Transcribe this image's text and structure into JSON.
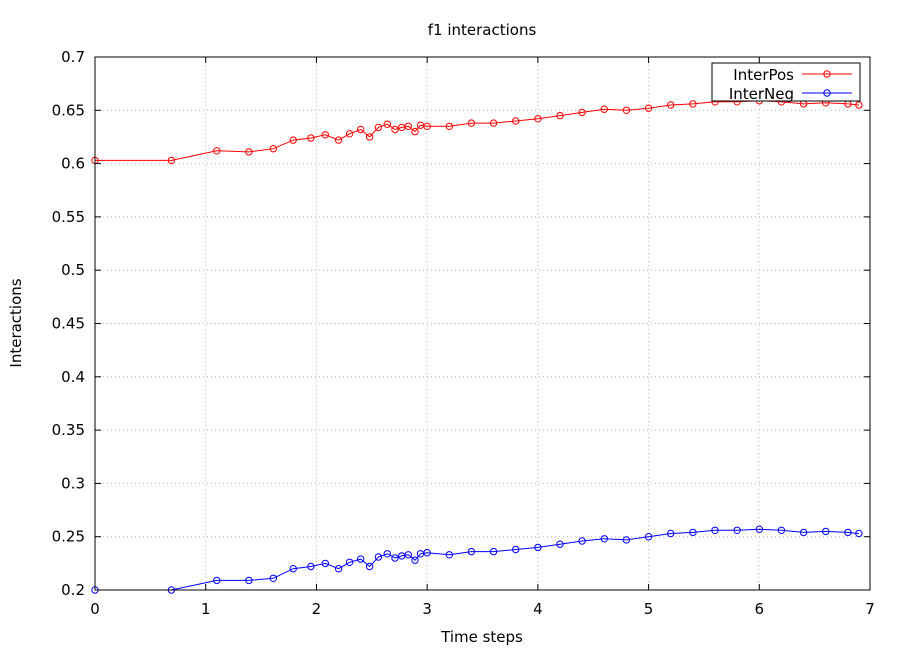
{
  "chart_data": {
    "type": "line",
    "title": "f1 interactions",
    "xlabel": "Time steps",
    "ylabel": "Interactions",
    "xlim": [
      0,
      7
    ],
    "ylim": [
      0.2,
      0.7
    ],
    "xticks": [
      0,
      1,
      2,
      3,
      4,
      5,
      6,
      7
    ],
    "xtick_labels": [
      "0",
      "1",
      "2",
      "3",
      "4",
      "5",
      "6",
      "7"
    ],
    "yticks": [
      0.2,
      0.25,
      0.3,
      0.35,
      0.4,
      0.45,
      0.5,
      0.55,
      0.6,
      0.65,
      0.7
    ],
    "ytick_labels": [
      "0.2",
      "0.25",
      "0.3",
      "0.35",
      "0.4",
      "0.45",
      "0.5",
      "0.55",
      "0.6",
      "0.65",
      "0.7"
    ],
    "grid": true,
    "legend_position": "top-right",
    "marker": "open-circle",
    "series": [
      {
        "name": "InterPos",
        "color": "#ff0000",
        "x": [
          0.0,
          0.69,
          1.1,
          1.39,
          1.61,
          1.79,
          1.95,
          2.08,
          2.2,
          2.3,
          2.4,
          2.48,
          2.56,
          2.64,
          2.71,
          2.77,
          2.83,
          2.89,
          2.94,
          3.0,
          3.2,
          3.4,
          3.6,
          3.8,
          4.0,
          4.2,
          4.4,
          4.6,
          4.8,
          5.0,
          5.2,
          5.4,
          5.6,
          5.8,
          6.0,
          6.2,
          6.4,
          6.6,
          6.8,
          6.9
        ],
        "y": [
          0.603,
          0.603,
          0.612,
          0.611,
          0.614,
          0.622,
          0.624,
          0.627,
          0.622,
          0.628,
          0.632,
          0.625,
          0.634,
          0.637,
          0.632,
          0.634,
          0.635,
          0.63,
          0.636,
          0.635,
          0.635,
          0.638,
          0.638,
          0.64,
          0.642,
          0.645,
          0.648,
          0.651,
          0.65,
          0.652,
          0.655,
          0.656,
          0.658,
          0.658,
          0.659,
          0.658,
          0.656,
          0.657,
          0.656,
          0.655
        ]
      },
      {
        "name": "InterNeg",
        "color": "#0000ff",
        "x": [
          0.0,
          0.69,
          1.1,
          1.39,
          1.61,
          1.79,
          1.95,
          2.08,
          2.2,
          2.3,
          2.4,
          2.48,
          2.56,
          2.64,
          2.71,
          2.77,
          2.83,
          2.89,
          2.94,
          3.0,
          3.2,
          3.4,
          3.6,
          3.8,
          4.0,
          4.2,
          4.4,
          4.6,
          4.8,
          5.0,
          5.2,
          5.4,
          5.6,
          5.8,
          6.0,
          6.2,
          6.4,
          6.6,
          6.8,
          6.9
        ],
        "y": [
          0.2,
          0.2,
          0.209,
          0.209,
          0.211,
          0.22,
          0.222,
          0.225,
          0.22,
          0.226,
          0.229,
          0.222,
          0.231,
          0.234,
          0.23,
          0.232,
          0.233,
          0.228,
          0.234,
          0.235,
          0.233,
          0.236,
          0.236,
          0.238,
          0.24,
          0.243,
          0.246,
          0.248,
          0.247,
          0.25,
          0.253,
          0.254,
          0.256,
          0.256,
          0.257,
          0.256,
          0.254,
          0.255,
          0.254,
          0.253
        ]
      }
    ]
  }
}
